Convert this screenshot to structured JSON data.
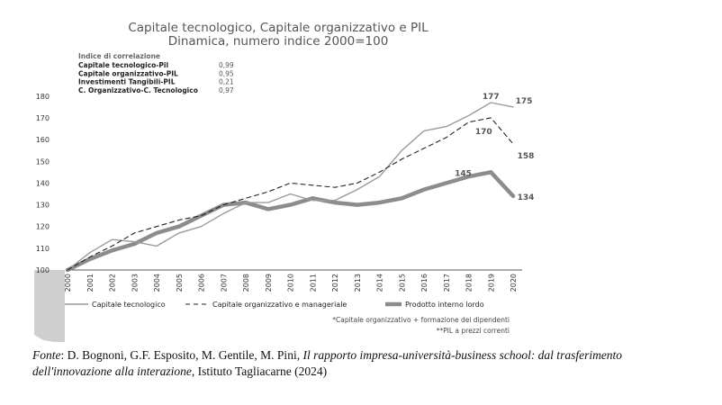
{
  "chart_data": {
    "type": "line",
    "title": [
      "Capitale tecnologico, Capitale organizzativo e PIL",
      "Dinamica, numero indice 2000=100"
    ],
    "ylim": [
      100,
      180
    ],
    "yticks": [
      "100",
      "110",
      "120",
      "130",
      "140",
      "150",
      "160",
      "170",
      "180"
    ],
    "x": [
      "2000",
      "2001",
      "2002",
      "2003",
      "2004",
      "2005",
      "2006",
      "2007",
      "2008",
      "2009",
      "2010",
      "2011",
      "2012",
      "2013",
      "2014",
      "2015",
      "2016",
      "2017",
      "2018",
      "2019",
      "2020"
    ],
    "grid": false,
    "series": [
      {
        "name": "Capitale tecnologico",
        "style": "solid-thin",
        "color": "#9a9a9a",
        "values": [
          100,
          108,
          114,
          113,
          111,
          117,
          120,
          126,
          131,
          131,
          135,
          132,
          132,
          137,
          143,
          155,
          164,
          166,
          171,
          177,
          175
        ]
      },
      {
        "name": "Capitale organizzativo e manageriale",
        "style": "dashed",
        "color": "#222222",
        "values": [
          100,
          106,
          111,
          117,
          120,
          123,
          125,
          130,
          133,
          136,
          140,
          139,
          138,
          140,
          145,
          151,
          156,
          161,
          168,
          170,
          158
        ]
      },
      {
        "name": "Prodotto interno lordo",
        "style": "solid-thick",
        "color": "#8c8c8c",
        "values": [
          100,
          105,
          109,
          112,
          117,
          120,
          125,
          130,
          131,
          128,
          130,
          133,
          131,
          130,
          131,
          133,
          137,
          140,
          143,
          145,
          134
        ]
      }
    ],
    "annotations": [
      {
        "text": "177",
        "x": "2019",
        "y": 177
      },
      {
        "text": "175",
        "x": "2020",
        "y": 175
      },
      {
        "text": "170",
        "x": "2019",
        "y": 170
      },
      {
        "text": "158",
        "x": "2020",
        "y": 158
      },
      {
        "text": "145",
        "x": "2018",
        "y": 145
      },
      {
        "text": "134",
        "x": "2020",
        "y": 134
      }
    ],
    "correlation": {
      "heading": "Indice di correlazione",
      "rows": [
        {
          "label": "Capitale tecnologico-Pil",
          "value": "0,99"
        },
        {
          "label": "Capitale organizzativo-PIL",
          "value": "0,95"
        },
        {
          "label": "Investimenti Tangibili-PIL",
          "value": "0,21"
        },
        {
          "label": "C. Organizzativo-C. Tecnologico",
          "value": "0,97"
        }
      ]
    },
    "notes": [
      "*Capitale organizzativo + formazione dei dipendenti",
      "**PIL a prezzi correnti"
    ]
  },
  "source": {
    "prefix": "Fonte",
    "authors": ": D. Bognoni, G.F. Esposito, M. Gentile, M. Pini, ",
    "title": "Il rapporto impresa-università-business school: dal trasferimento dell'innovazione alla interazione",
    "suffix": ",  Istituto Tagliacarne (2024)"
  }
}
